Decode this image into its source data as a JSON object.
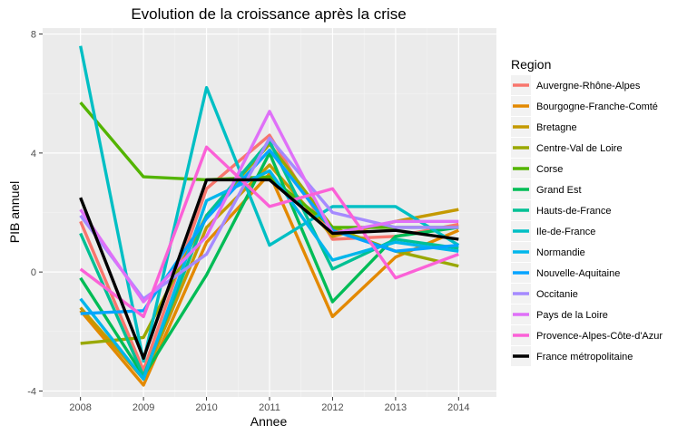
{
  "chart_data": {
    "type": "line",
    "title": "Evolution de la croissance après la crise",
    "xlabel": "Annee",
    "ylabel": "PIB annuel",
    "x": [
      2008,
      2009,
      2010,
      2011,
      2012,
      2013,
      2014
    ],
    "xlim": [
      2007.4,
      2014.6
    ],
    "ylim": [
      -4.2,
      8.2
    ],
    "yticks": [
      -4,
      0,
      4,
      8
    ],
    "grid": true,
    "legend": {
      "title": "Region",
      "position": "right"
    },
    "series": [
      {
        "name": "Auvergne-Rhône-Alpes",
        "color": "#F8766D",
        "values": [
          1.7,
          -3.3,
          2.8,
          4.6,
          1.1,
          1.2,
          1.6
        ]
      },
      {
        "name": "Bourgogne-Franche-Comté",
        "color": "#E38900",
        "values": [
          -1.3,
          -3.8,
          1.0,
          3.3,
          -1.5,
          0.5,
          1.4
        ]
      },
      {
        "name": "Bretagne",
        "color": "#C49A00",
        "values": [
          -1.2,
          -3.6,
          1.5,
          3.6,
          1.2,
          1.7,
          2.1
        ]
      },
      {
        "name": "Centre-Val de Loire",
        "color": "#99A800",
        "values": [
          -2.4,
          -2.2,
          1.9,
          4.3,
          1.5,
          0.7,
          0.2
        ]
      },
      {
        "name": "Corse",
        "color": "#53B400",
        "values": [
          5.7,
          3.2,
          3.1,
          3.2,
          1.5,
          1.5,
          1.5
        ]
      },
      {
        "name": "Grand Est",
        "color": "#00BC56",
        "values": [
          -0.2,
          -3.5,
          -0.1,
          4.0,
          -1.0,
          1.2,
          1.5
        ]
      },
      {
        "name": "Hauts-de-France",
        "color": "#00C094",
        "values": [
          1.3,
          -3.5,
          1.9,
          4.4,
          0.1,
          1.1,
          0.8
        ]
      },
      {
        "name": "Ile-de-France",
        "color": "#00BFC4",
        "values": [
          7.6,
          -3.0,
          6.2,
          0.9,
          2.2,
          2.2,
          0.9
        ]
      },
      {
        "name": "Normandie",
        "color": "#00B6EB",
        "values": [
          -0.9,
          -3.6,
          2.4,
          3.4,
          0.4,
          1.0,
          0.7
        ]
      },
      {
        "name": "Nouvelle-Aquitaine",
        "color": "#06A4FF",
        "values": [
          -1.4,
          -1.3,
          1.8,
          4.1,
          1.4,
          0.7,
          0.9
        ]
      },
      {
        "name": "Occitanie",
        "color": "#A58AFF",
        "values": [
          1.9,
          -0.9,
          0.6,
          4.5,
          2.0,
          1.5,
          1.5
        ]
      },
      {
        "name": "Pays de la Loire",
        "color": "#DF70F8",
        "values": [
          2.1,
          -1.0,
          1.2,
          5.4,
          1.3,
          1.7,
          1.7
        ]
      },
      {
        "name": "Provence-Alpes-Côte-d'Azur",
        "color": "#FB61D7",
        "values": [
          0.1,
          -1.5,
          4.2,
          2.2,
          2.8,
          -0.2,
          0.6
        ]
      },
      {
        "name": "France métropolitaine",
        "color": "#000000",
        "values": [
          2.5,
          -2.9,
          3.1,
          3.1,
          1.3,
          1.4,
          1.1
        ]
      }
    ]
  }
}
